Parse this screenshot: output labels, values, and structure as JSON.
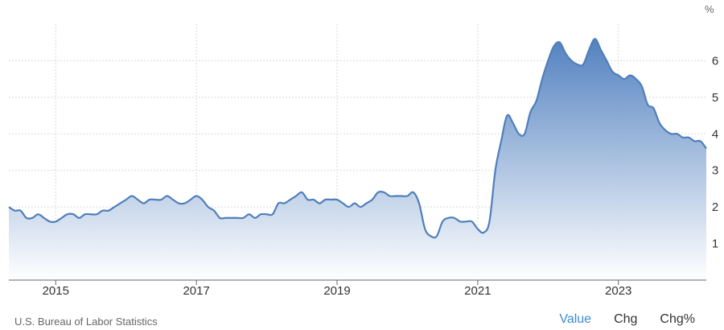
{
  "colors": {
    "line": "#4f7fba",
    "fill_top": "#4a7bbd",
    "fill_bottom": "#ffffff",
    "grid": "#d9d9d9",
    "axis": "#666666",
    "tab_active": "#3d8bc9"
  },
  "chart_data": {
    "type": "area",
    "title": "",
    "xlabel": "",
    "ylabel": "",
    "unit": "%",
    "y_axis_side": "right",
    "ylim": [
      0,
      7
    ],
    "yticks": [
      1,
      2,
      3,
      4,
      5,
      6
    ],
    "xlim": [
      "2014-05",
      "2024-04"
    ],
    "xticks": [
      "2015",
      "2017",
      "2019",
      "2021",
      "2023"
    ],
    "grid": true,
    "series": [
      {
        "x": [
          "2014-05",
          "2014-06",
          "2014-07",
          "2014-08",
          "2014-09",
          "2014-10",
          "2014-11",
          "2014-12",
          "2015-01",
          "2015-02",
          "2015-03",
          "2015-04",
          "2015-05",
          "2015-06",
          "2015-07",
          "2015-08",
          "2015-09",
          "2015-10",
          "2015-11",
          "2015-12",
          "2016-01",
          "2016-02",
          "2016-03",
          "2016-04",
          "2016-05",
          "2016-06",
          "2016-07",
          "2016-08",
          "2016-09",
          "2016-10",
          "2016-11",
          "2016-12",
          "2017-01",
          "2017-02",
          "2017-03",
          "2017-04",
          "2017-05",
          "2017-06",
          "2017-07",
          "2017-08",
          "2017-09",
          "2017-10",
          "2017-11",
          "2017-12",
          "2018-01",
          "2018-02",
          "2018-03",
          "2018-04",
          "2018-05",
          "2018-06",
          "2018-07",
          "2018-08",
          "2018-09",
          "2018-10",
          "2018-11",
          "2018-12",
          "2019-01",
          "2019-02",
          "2019-03",
          "2019-04",
          "2019-05",
          "2019-06",
          "2019-07",
          "2019-08",
          "2019-09",
          "2019-10",
          "2019-11",
          "2019-12",
          "2020-01",
          "2020-02",
          "2020-03",
          "2020-04",
          "2020-05",
          "2020-06",
          "2020-07",
          "2020-08",
          "2020-09",
          "2020-10",
          "2020-11",
          "2020-12",
          "2021-01",
          "2021-02",
          "2021-03",
          "2021-04",
          "2021-05",
          "2021-06",
          "2021-07",
          "2021-08",
          "2021-09",
          "2021-10",
          "2021-11",
          "2021-12",
          "2022-01",
          "2022-02",
          "2022-03",
          "2022-04",
          "2022-05",
          "2022-06",
          "2022-07",
          "2022-08",
          "2022-09",
          "2022-10",
          "2022-11",
          "2022-12",
          "2023-01",
          "2023-02",
          "2023-03",
          "2023-04",
          "2023-05",
          "2023-06",
          "2023-07",
          "2023-08",
          "2023-09",
          "2023-10",
          "2023-11",
          "2023-12",
          "2024-01",
          "2024-02",
          "2024-03",
          "2024-04"
        ],
        "values": [
          2.0,
          1.9,
          1.9,
          1.7,
          1.7,
          1.8,
          1.7,
          1.6,
          1.6,
          1.7,
          1.8,
          1.8,
          1.7,
          1.8,
          1.8,
          1.8,
          1.9,
          1.9,
          2.0,
          2.1,
          2.2,
          2.3,
          2.2,
          2.1,
          2.2,
          2.2,
          2.2,
          2.3,
          2.2,
          2.1,
          2.1,
          2.2,
          2.3,
          2.2,
          2.0,
          1.9,
          1.7,
          1.7,
          1.7,
          1.7,
          1.7,
          1.8,
          1.7,
          1.8,
          1.8,
          1.8,
          2.1,
          2.1,
          2.2,
          2.3,
          2.4,
          2.2,
          2.2,
          2.1,
          2.2,
          2.2,
          2.2,
          2.1,
          2.0,
          2.1,
          2.0,
          2.1,
          2.2,
          2.4,
          2.4,
          2.3,
          2.3,
          2.3,
          2.3,
          2.4,
          2.1,
          1.4,
          1.2,
          1.2,
          1.6,
          1.7,
          1.7,
          1.6,
          1.6,
          1.6,
          1.4,
          1.3,
          1.6,
          3.0,
          3.8,
          4.5,
          4.3,
          4.0,
          4.0,
          4.6,
          4.9,
          5.5,
          6.0,
          6.4,
          6.5,
          6.2,
          6.0,
          5.9,
          5.9,
          6.3,
          6.6,
          6.3,
          6.0,
          5.7,
          5.6,
          5.5,
          5.6,
          5.5,
          5.3,
          4.8,
          4.7,
          4.3,
          4.1,
          4.0,
          4.0,
          3.9,
          3.9,
          3.8,
          3.8,
          3.6
        ]
      }
    ]
  },
  "footer": {
    "source": "U.S. Bureau of Labor Statistics",
    "tabs": [
      "Value",
      "Chg",
      "Chg%"
    ],
    "active_tab": "Value"
  }
}
